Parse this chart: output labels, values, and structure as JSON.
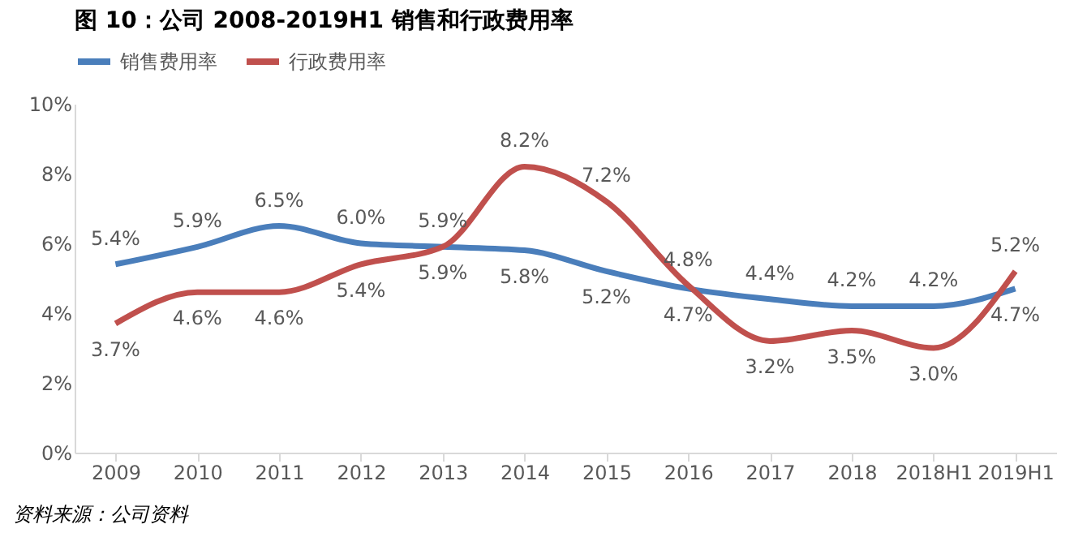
{
  "chart_data": {
    "type": "line",
    "title": "图 10：公司 2008-2019H1 销售和行政费用率",
    "categories": [
      "2009",
      "2010",
      "2011",
      "2012",
      "2013",
      "2014",
      "2015",
      "2016",
      "2017",
      "2018",
      "2018H1",
      "2019H1"
    ],
    "series": [
      {
        "name": "销售费用率",
        "color": "#4a7ebb",
        "values": [
          5.4,
          5.9,
          6.5,
          6.0,
          5.9,
          5.8,
          5.2,
          4.7,
          4.4,
          4.2,
          4.2,
          4.7
        ],
        "value_labels": [
          "5.4%",
          "5.9%",
          "6.5%",
          "6.0%",
          "5.9%",
          "5.8%",
          "5.2%",
          "4.7%",
          "4.4%",
          "4.2%",
          "4.2%",
          "4.7%"
        ]
      },
      {
        "name": "行政费用率",
        "color": "#c0504d",
        "values": [
          3.7,
          4.6,
          4.6,
          5.4,
          5.9,
          8.2,
          7.2,
          4.8,
          3.2,
          3.5,
          3.0,
          5.2
        ],
        "value_labels": [
          "3.7%",
          "4.6%",
          "4.6%",
          "5.4%",
          "5.9%",
          "8.2%",
          "7.2%",
          "4.8%",
          "3.2%",
          "3.5%",
          "3.0%",
          "5.2%"
        ]
      }
    ],
    "ylim": [
      0,
      10
    ],
    "yticks": [
      {
        "value": 0,
        "label": "0%"
      },
      {
        "value": 2,
        "label": "2%"
      },
      {
        "value": 4,
        "label": "4%"
      },
      {
        "value": 6,
        "label": "6%"
      },
      {
        "value": 8,
        "label": "8%"
      },
      {
        "value": 10,
        "label": "10%"
      }
    ],
    "grid": false,
    "legend": "top",
    "marker": "none",
    "line_style": "solid",
    "annotations": [
      "资料来源：公司资料"
    ]
  }
}
